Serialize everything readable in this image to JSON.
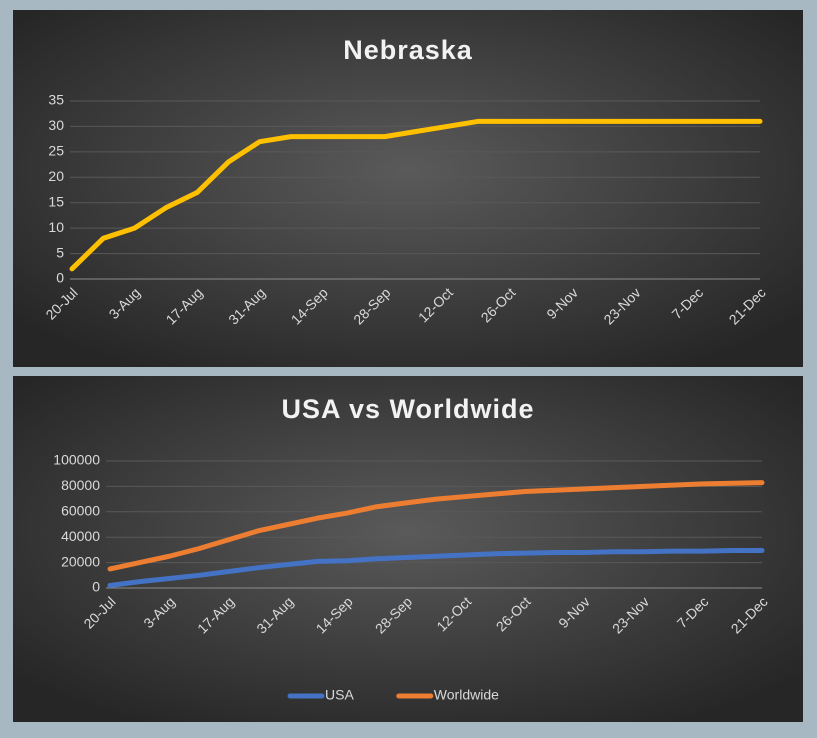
{
  "chart_data": [
    {
      "type": "line",
      "title": "Nebraska",
      "categories": [
        "20-Jul",
        null,
        "3-Aug",
        null,
        "17-Aug",
        null,
        "31-Aug",
        null,
        "14-Sep",
        null,
        "28-Sep",
        null,
        "12-Oct",
        null,
        "26-Oct",
        null,
        "9-Nov",
        null,
        "23-Nov",
        null,
        "7-Dec",
        null,
        "21-Dec"
      ],
      "series": [
        {
          "name": "Nebraska",
          "color": "#ffc000",
          "values": [
            2,
            8,
            10,
            14,
            17,
            23,
            27,
            28,
            28,
            28,
            28,
            29,
            30,
            31,
            31,
            31,
            31,
            31,
            31,
            31,
            31,
            31,
            31
          ]
        }
      ],
      "ylim": [
        0,
        35
      ],
      "yticks": [
        0,
        5,
        10,
        15,
        20,
        25,
        30,
        35
      ],
      "grid": true
    },
    {
      "type": "line",
      "title": "USA vs Worldwide",
      "categories": [
        "20-Jul",
        null,
        "3-Aug",
        null,
        "17-Aug",
        null,
        "31-Aug",
        null,
        "14-Sep",
        null,
        "28-Sep",
        null,
        "12-Oct",
        null,
        "26-Oct",
        null,
        "9-Nov",
        null,
        "23-Nov",
        null,
        "7-Dec",
        null,
        "21-Dec"
      ],
      "series": [
        {
          "name": "USA",
          "color": "#4472c4",
          "values": [
            2000,
            5000,
            7500,
            10000,
            13000,
            16000,
            18500,
            21000,
            21500,
            23000,
            24000,
            25000,
            26000,
            27000,
            27500,
            28000,
            28000,
            28500,
            28500,
            29000,
            29000,
            29500,
            29500
          ]
        },
        {
          "name": "Worldwide",
          "color": "#ed7d31",
          "values": [
            15000,
            20000,
            25000,
            31000,
            38000,
            45000,
            50000,
            55000,
            59000,
            64000,
            67000,
            70000,
            72000,
            74000,
            76000,
            77000,
            78000,
            79000,
            80000,
            81000,
            82000,
            82500,
            83000
          ]
        }
      ],
      "ylim": [
        0,
        100000
      ],
      "yticks": [
        0,
        20000,
        40000,
        60000,
        80000,
        100000
      ],
      "grid": true,
      "legend": "bottom"
    }
  ]
}
